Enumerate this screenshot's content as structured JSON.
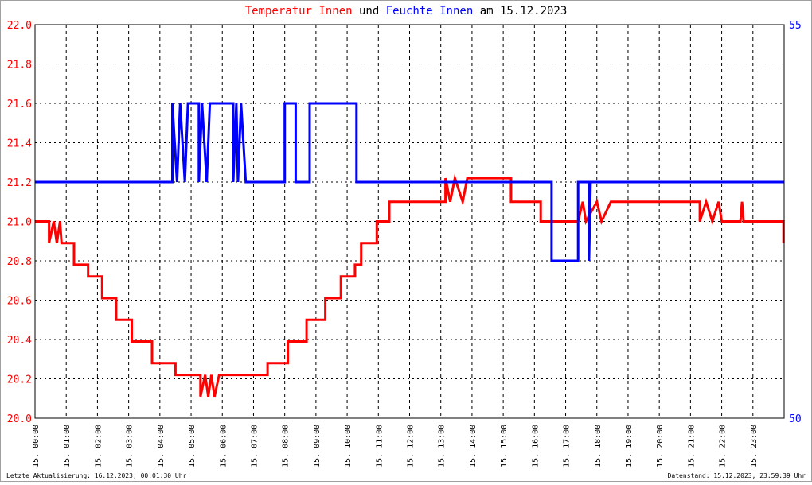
{
  "title": {
    "part1": "Temperatur Innen",
    "part2": " und ",
    "part3": "Feuchte Innen",
    "part4": " am 15.12.2023"
  },
  "footer": {
    "left": "Letzte Aktualisierung: 16.12.2023, 00:01:30 Uhr",
    "right": "Datenstand: 15.12.2023, 23:59:39 Uhr"
  },
  "colors": {
    "temperature": "#ff0000",
    "humidity": "#0000ff",
    "text": "#000000",
    "grid": "#000000",
    "border": "#a0a0a0"
  },
  "chart_data": {
    "type": "line",
    "grid": true,
    "x_unit": "hour of day",
    "x_ticks": [
      "15. 00:00",
      "15. 01:00",
      "15. 02:00",
      "15. 03:00",
      "15. 04:00",
      "15. 05:00",
      "15. 06:00",
      "15. 07:00",
      "15. 08:00",
      "15. 09:00",
      "15. 10:00",
      "15. 11:00",
      "15. 12:00",
      "15. 13:00",
      "15. 14:00",
      "15. 15:00",
      "15. 16:00",
      "15. 17:00",
      "15. 18:00",
      "15. 19:00",
      "15. 20:00",
      "15. 21:00",
      "15. 22:00",
      "15. 23:00"
    ],
    "xlim": [
      0,
      24
    ],
    "y_left": {
      "lim": [
        20.0,
        22.0
      ],
      "ticks": [
        "20.0",
        "20.2",
        "20.4",
        "20.6",
        "20.8",
        "21.0",
        "21.2",
        "21.4",
        "21.6",
        "21.8",
        "22.0"
      ]
    },
    "y_right": {
      "lim": [
        50,
        55
      ],
      "ticks": [
        "50",
        "55"
      ]
    },
    "series": [
      {
        "name": "Temperatur Innen",
        "axis": "left",
        "points": [
          [
            0,
            21.0
          ],
          [
            0.45,
            21.0
          ],
          [
            0.45,
            20.89
          ],
          [
            0.6,
            21.0
          ],
          [
            0.7,
            20.89
          ],
          [
            0.8,
            21.0
          ],
          [
            0.85,
            20.89
          ],
          [
            1.25,
            20.89
          ],
          [
            1.25,
            20.78
          ],
          [
            1.7,
            20.78
          ],
          [
            1.7,
            20.72
          ],
          [
            2.15,
            20.72
          ],
          [
            2.15,
            20.61
          ],
          [
            2.6,
            20.61
          ],
          [
            2.6,
            20.5
          ],
          [
            3.1,
            20.5
          ],
          [
            3.1,
            20.39
          ],
          [
            3.75,
            20.39
          ],
          [
            3.75,
            20.28
          ],
          [
            4.5,
            20.28
          ],
          [
            4.5,
            20.22
          ],
          [
            5.3,
            20.22
          ],
          [
            5.3,
            20.11
          ],
          [
            5.45,
            20.22
          ],
          [
            5.55,
            20.11
          ],
          [
            5.65,
            20.22
          ],
          [
            5.75,
            20.11
          ],
          [
            5.9,
            20.22
          ],
          [
            7.45,
            20.22
          ],
          [
            7.45,
            20.28
          ],
          [
            8.1,
            20.28
          ],
          [
            8.1,
            20.39
          ],
          [
            8.7,
            20.39
          ],
          [
            8.7,
            20.5
          ],
          [
            9.3,
            20.5
          ],
          [
            9.3,
            20.61
          ],
          [
            9.8,
            20.61
          ],
          [
            9.8,
            20.72
          ],
          [
            10.25,
            20.72
          ],
          [
            10.25,
            20.78
          ],
          [
            10.45,
            20.78
          ],
          [
            10.45,
            20.89
          ],
          [
            10.95,
            20.89
          ],
          [
            10.95,
            21.0
          ],
          [
            11.35,
            21.0
          ],
          [
            11.35,
            21.1
          ],
          [
            13.15,
            21.1
          ],
          [
            13.15,
            21.22
          ],
          [
            13.3,
            21.1
          ],
          [
            13.45,
            21.22
          ],
          [
            13.7,
            21.1
          ],
          [
            13.85,
            21.22
          ],
          [
            15.25,
            21.22
          ],
          [
            15.25,
            21.1
          ],
          [
            16.2,
            21.1
          ],
          [
            16.2,
            21.0
          ],
          [
            17.4,
            21.0
          ],
          [
            17.55,
            21.1
          ],
          [
            17.65,
            21.0
          ],
          [
            18.0,
            21.1
          ],
          [
            18.15,
            21.0
          ],
          [
            18.45,
            21.1
          ],
          [
            21.3,
            21.1
          ],
          [
            21.3,
            21.0
          ],
          [
            21.5,
            21.1
          ],
          [
            21.7,
            21.0
          ],
          [
            21.9,
            21.1
          ],
          [
            22.0,
            21.0
          ],
          [
            22.6,
            21.0
          ],
          [
            22.65,
            21.1
          ],
          [
            22.7,
            21.0
          ],
          [
            23.98,
            21.0
          ],
          [
            23.98,
            20.89
          ]
        ]
      },
      {
        "name": "Feuchte Innen",
        "axis": "right",
        "points": [
          [
            0,
            53.0
          ],
          [
            4.4,
            53.0
          ],
          [
            4.4,
            54.0
          ],
          [
            4.55,
            53.0
          ],
          [
            4.65,
            54.0
          ],
          [
            4.8,
            53.0
          ],
          [
            4.9,
            54.0
          ],
          [
            5.25,
            54.0
          ],
          [
            5.25,
            53.0
          ],
          [
            5.35,
            54.0
          ],
          [
            5.5,
            53.0
          ],
          [
            5.6,
            54.0
          ],
          [
            6.35,
            54.0
          ],
          [
            6.35,
            53.0
          ],
          [
            6.45,
            54.0
          ],
          [
            6.5,
            53.0
          ],
          [
            6.6,
            54.0
          ],
          [
            6.75,
            53.0
          ],
          [
            8.0,
            53.0
          ],
          [
            8.0,
            54.0
          ],
          [
            8.35,
            54.0
          ],
          [
            8.35,
            53.0
          ],
          [
            8.8,
            53.0
          ],
          [
            8.8,
            54.0
          ],
          [
            10.3,
            54.0
          ],
          [
            10.3,
            53.0
          ],
          [
            16.55,
            53.0
          ],
          [
            16.55,
            52.0
          ],
          [
            17.4,
            52.0
          ],
          [
            17.4,
            53.0
          ],
          [
            17.75,
            53.0
          ],
          [
            17.75,
            52.0
          ],
          [
            17.8,
            53.0
          ],
          [
            24.0,
            53.0
          ]
        ]
      }
    ]
  }
}
